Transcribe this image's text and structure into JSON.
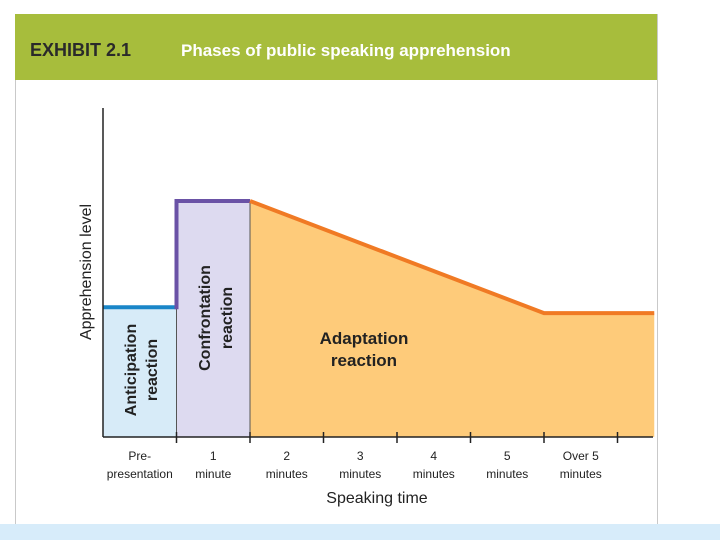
{
  "colors": {
    "header_bg": "#a7bd3c",
    "bottom_band": "#d7ecfa",
    "anticipation_fill": "#d7ebf8",
    "anticipation_line": "#1a86c8",
    "confrontation_fill": "#dddaf0",
    "confrontation_line": "#6a52a6",
    "adaptation_fill": "#fecb7a",
    "adaptation_line": "#f07a24",
    "axis": "#222222"
  },
  "header": {
    "exhibit_id": "EXHIBIT 2.1",
    "title": "Phases of public speaking apprehension"
  },
  "chart_data": {
    "type": "area",
    "title": "Phases of public speaking apprehension",
    "xlabel": "Speaking time",
    "ylabel": "Apprehension level",
    "categories": [
      [
        "Pre-",
        "presentation"
      ],
      [
        "1",
        "minute"
      ],
      [
        "2",
        "minutes"
      ],
      [
        "3",
        "minutes"
      ],
      [
        "4",
        "minutes"
      ],
      [
        "5",
        "minutes"
      ],
      [
        "Over 5",
        "minutes"
      ]
    ],
    "ylim": [
      0,
      100
    ],
    "phases": [
      {
        "key": "anticipation",
        "labels": [
          "Anticipation",
          "reaction"
        ],
        "x": [
          0,
          1
        ],
        "y": [
          [
            0,
            44
          ],
          [
            1,
            44
          ]
        ]
      },
      {
        "key": "confrontation",
        "labels": [
          "Confrontation",
          "reaction"
        ],
        "x": [
          1,
          2
        ],
        "y": [
          [
            1,
            80
          ],
          [
            2,
            80
          ]
        ]
      },
      {
        "key": "adaptation",
        "labels": [
          "Adaptation",
          "reaction"
        ],
        "x": [
          2,
          7.5
        ],
        "y": [
          [
            2,
            80
          ],
          [
            6,
            42
          ],
          [
            7.5,
            42
          ]
        ]
      }
    ]
  }
}
